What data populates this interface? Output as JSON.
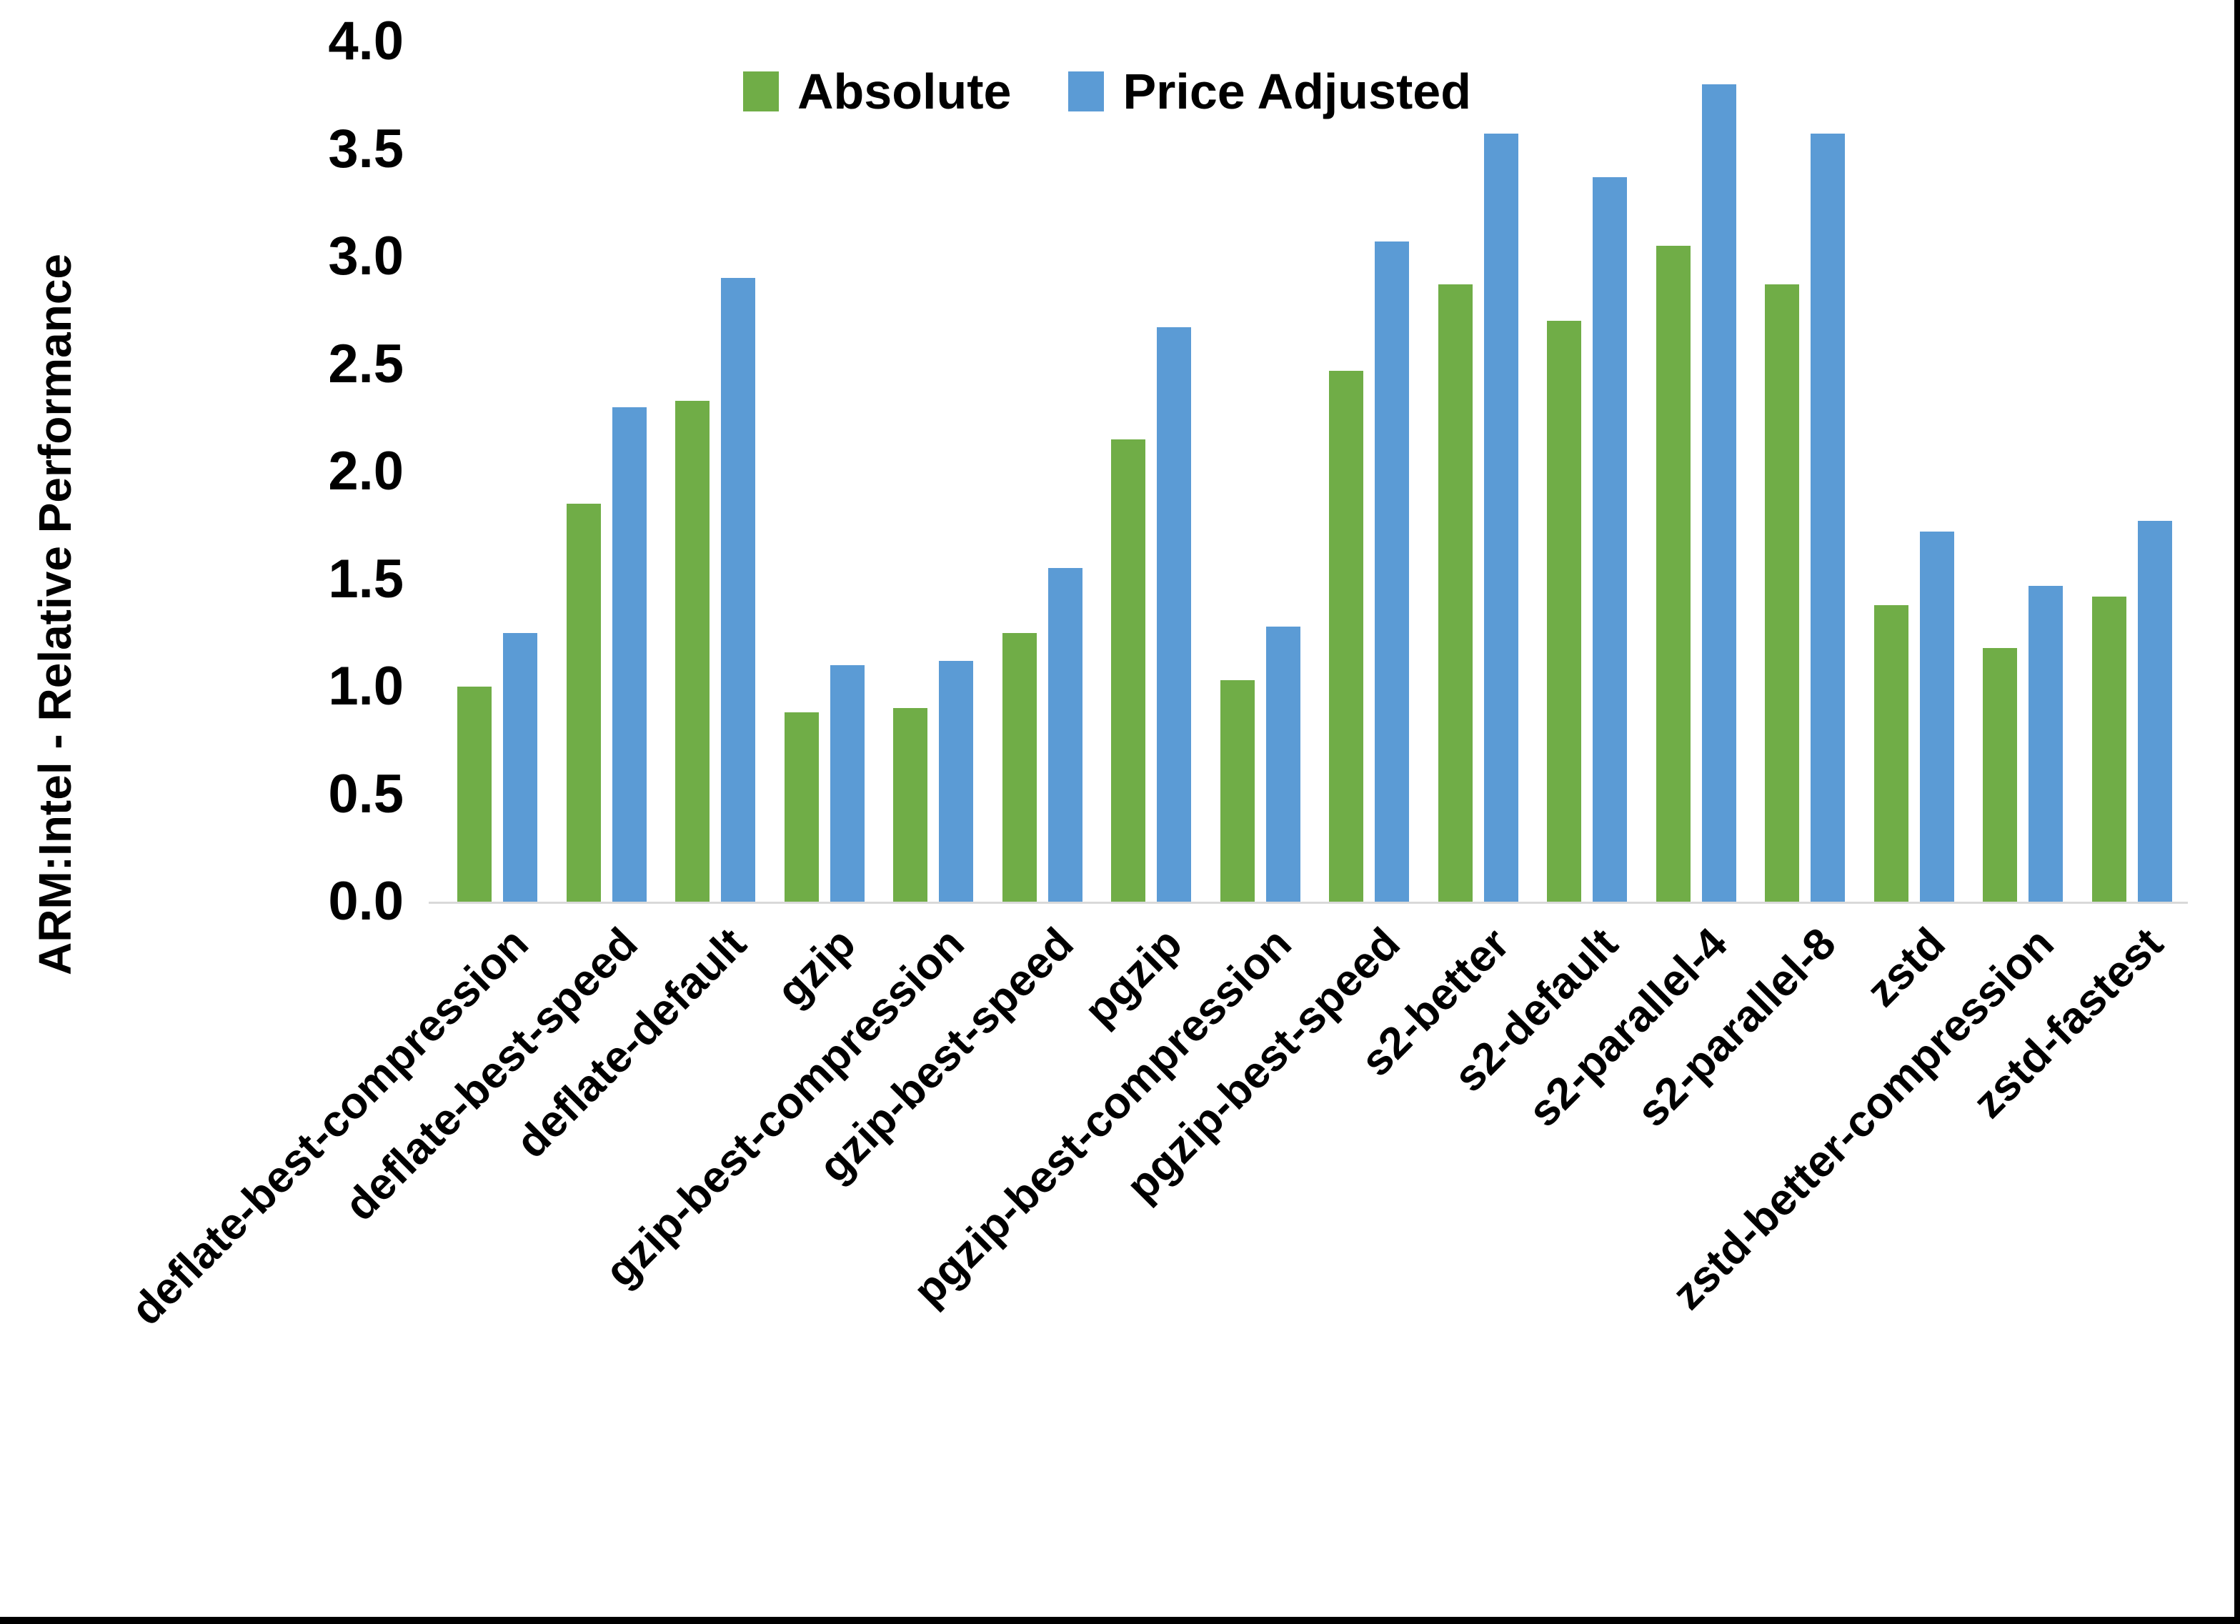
{
  "chart_data": {
    "type": "bar",
    "title": "",
    "xlabel": "",
    "ylabel": "ARM:Intel - Relative Performance",
    "ylim": [
      0.0,
      4.0
    ],
    "ytick_step": 0.5,
    "yticks": [
      "4.0",
      "3.5",
      "3.0",
      "2.5",
      "2.0",
      "1.5",
      "1.0",
      "0.5",
      "0.0"
    ],
    "grid": false,
    "legend_position": "top-center",
    "axis_line_color": "#d9d9d9",
    "categories": [
      "deflate-best-compression",
      "deflate-best-speed",
      "deflate-default",
      "gzip",
      "gzip-best-compression",
      "gzip-best-speed",
      "pgzip",
      "pgzip-best-compression",
      "pgzip-best-speed",
      "s2-better",
      "s2-default",
      "s2-parallel-4",
      "s2-parallel-8",
      "zstd",
      "zstd-better-compression",
      "zstd-fastest"
    ],
    "series": [
      {
        "name": "Absolute",
        "color": "#70AD47",
        "values": [
          1.0,
          1.85,
          2.33,
          0.88,
          0.9,
          1.25,
          2.15,
          1.03,
          2.47,
          2.87,
          2.7,
          3.05,
          2.87,
          1.38,
          1.18,
          1.42
        ]
      },
      {
        "name": "Price Adjusted",
        "color": "#5B9BD5",
        "values": [
          1.25,
          2.3,
          2.9,
          1.1,
          1.12,
          1.55,
          2.67,
          1.28,
          3.07,
          3.57,
          3.37,
          3.8,
          3.57,
          1.72,
          1.47,
          1.77
        ]
      }
    ]
  }
}
